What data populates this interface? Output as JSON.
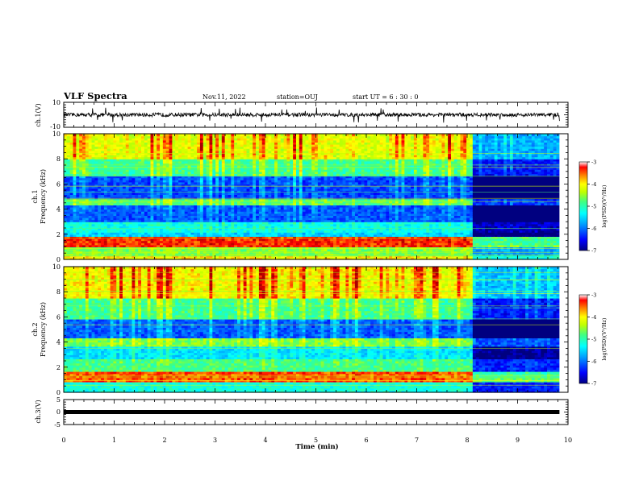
{
  "header": {
    "title": "VLF Spectra",
    "date": "Nov.11, 2022",
    "station": "station=OUJ",
    "start": "start  UT =  6 : 30 : 0"
  },
  "colors": {
    "spectrogram_scale": [
      "#000080",
      "#0000ff",
      "#00a0ff",
      "#00ffff",
      "#40ff80",
      "#c0ff00",
      "#ffff00",
      "#ff8000",
      "#ff0000",
      "#a00000"
    ],
    "waveform": "#000000"
  },
  "chart_data": [
    {
      "id": "ch1-waveform",
      "type": "line",
      "ylabel": "ch.1(V)",
      "ylim": [
        -10,
        10
      ],
      "yticks": [
        "10",
        "-10"
      ],
      "xlim": [
        0,
        10
      ],
      "description_values": {
        "baseline": 0,
        "typical_amplitude": 1.5
      }
    },
    {
      "id": "ch1-spectrogram",
      "type": "heatmap",
      "ylabel_line1": "ch.1",
      "ylabel_line2": "Frequency  (kHz)",
      "ylim": [
        0,
        10
      ],
      "yticks": [
        "0",
        "2",
        "4",
        "6",
        "8",
        "10"
      ],
      "xlim": [
        0,
        10
      ],
      "data_end_min": 9.83,
      "transition_min": 8.07,
      "colorbar": {
        "label": "log(PSD)(V²/Hz)",
        "range": [
          -7,
          -3
        ],
        "ticks": [
          "-3",
          "-4",
          "-5",
          "-6",
          "-7"
        ]
      },
      "bands_khz": [
        {
          "f0": 0.0,
          "f1": 0.4,
          "level": -4.0
        },
        {
          "f0": 0.4,
          "f1": 1.0,
          "level": -4.6
        },
        {
          "f0": 1.0,
          "f1": 1.8,
          "level": -3.4
        },
        {
          "f0": 1.8,
          "f1": 2.2,
          "level": -5.6
        },
        {
          "f0": 2.2,
          "f1": 3.0,
          "level": -5.3
        },
        {
          "f0": 3.0,
          "f1": 4.3,
          "level": -6.2
        },
        {
          "f0": 4.3,
          "f1": 4.8,
          "level": -4.8
        },
        {
          "f0": 4.8,
          "f1": 6.6,
          "level": -6.3
        },
        {
          "f0": 6.6,
          "f1": 8.0,
          "level": -5.0
        },
        {
          "f0": 8.0,
          "f1": 10.0,
          "level": -4.3
        }
      ]
    },
    {
      "id": "ch2-spectrogram",
      "type": "heatmap",
      "ylabel_line1": "ch.2",
      "ylabel_line2": "Frequency  (kHz)",
      "ylim": [
        0,
        10
      ],
      "yticks": [
        "0",
        "2",
        "4",
        "6",
        "8",
        "10"
      ],
      "xlim": [
        0,
        10
      ],
      "data_end_min": 9.83,
      "transition_min": 8.07,
      "colorbar": {
        "label": "log(PSD)(V²/Hz)",
        "range": [
          -7,
          -3
        ],
        "ticks": [
          "-3",
          "-4",
          "-5",
          "-6",
          "-7"
        ]
      },
      "bands_khz": [
        {
          "f0": 0.0,
          "f1": 0.9,
          "level": -5.2
        },
        {
          "f0": 0.9,
          "f1": 1.7,
          "level": -3.5
        },
        {
          "f0": 1.7,
          "f1": 2.6,
          "level": -4.9
        },
        {
          "f0": 2.6,
          "f1": 3.7,
          "level": -5.5
        },
        {
          "f0": 3.7,
          "f1": 4.4,
          "level": -4.7
        },
        {
          "f0": 4.4,
          "f1": 5.8,
          "level": -6.2
        },
        {
          "f0": 5.8,
          "f1": 7.5,
          "level": -5.0
        },
        {
          "f0": 7.5,
          "f1": 10.0,
          "level": -4.2
        }
      ]
    },
    {
      "id": "ch3-trace",
      "type": "line",
      "ylabel": "ch.3(V)",
      "ylim": [
        -5,
        5
      ],
      "yticks": [
        "5",
        "0",
        "-5"
      ],
      "xlim": [
        0,
        10
      ],
      "value": 0,
      "xlabel": "Time  (min)",
      "xticks": [
        "0",
        "1",
        "2",
        "3",
        "4",
        "5",
        "6",
        "7",
        "8",
        "9",
        "10"
      ]
    }
  ]
}
